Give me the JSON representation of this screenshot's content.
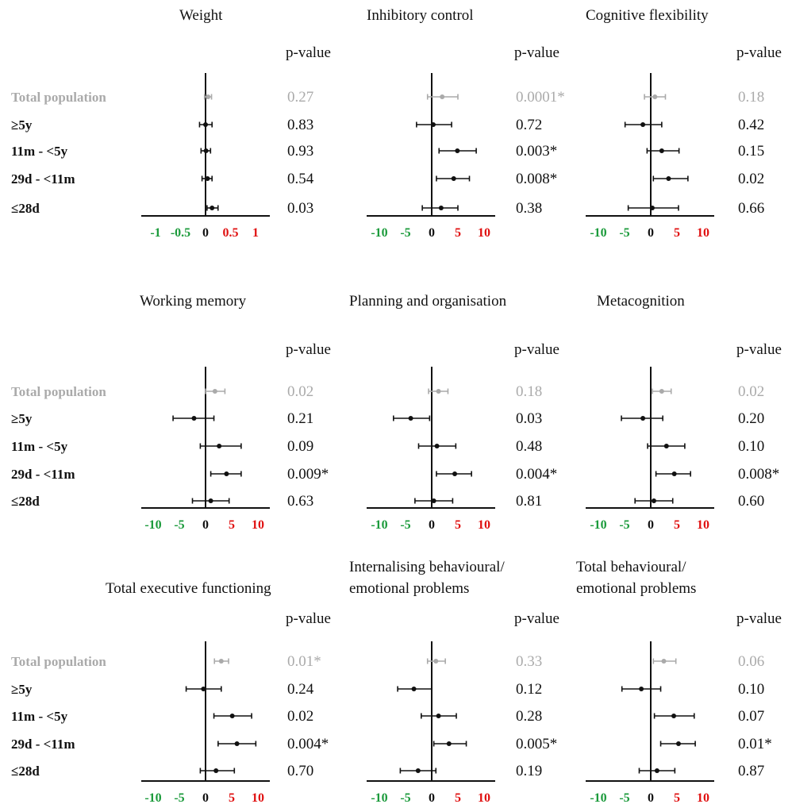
{
  "colors": {
    "total": "#aaaaaa",
    "subgroup": "#111111",
    "negative_tick": "#1a9a3a",
    "positive_tick": "#e01010",
    "zero_tick": "#111111"
  },
  "row_labels": [
    "Total population",
    "≥5y",
    "11m - <5y",
    "29d - <11m",
    "≤28d"
  ],
  "pvalue_header": "p-value",
  "chart_data": [
    {
      "type": "forest",
      "title": [
        "Weight"
      ],
      "xlim": [
        -1.3,
        1.3
      ],
      "ticks": [
        {
          "v": -1,
          "label": "-1"
        },
        {
          "v": -0.5,
          "label": "-0.5"
        },
        {
          "v": 0,
          "label": "0"
        },
        {
          "v": 0.5,
          "label": "0.5"
        },
        {
          "v": 1,
          "label": "1"
        }
      ],
      "rows": [
        {
          "label": "Total population",
          "est": 0.05,
          "lo": -0.02,
          "hi": 0.12,
          "p": "0.27"
        },
        {
          "label": "≥5y",
          "est": 0.0,
          "lo": -0.12,
          "hi": 0.13,
          "p": "0.83"
        },
        {
          "label": "11m - <5y",
          "est": 0.01,
          "lo": -0.09,
          "hi": 0.1,
          "p": "0.93"
        },
        {
          "label": "29d - <11m",
          "est": 0.04,
          "lo": -0.07,
          "hi": 0.13,
          "p": "0.54"
        },
        {
          "label": "≤28d",
          "est": 0.13,
          "lo": 0.03,
          "hi": 0.25,
          "p": "0.03"
        }
      ]
    },
    {
      "type": "forest",
      "title": [
        "Inhibitory control"
      ],
      "xlim": [
        -13,
        13
      ],
      "ticks": [
        {
          "v": -10,
          "label": "-10"
        },
        {
          "v": -5,
          "label": "-5"
        },
        {
          "v": 0,
          "label": "0"
        },
        {
          "v": 5,
          "label": "5"
        },
        {
          "v": 10,
          "label": "10"
        }
      ],
      "rows": [
        {
          "label": "Total population",
          "est": 2.0,
          "lo": -0.8,
          "hi": 5.0,
          "p": "0.0001*"
        },
        {
          "label": "≥5y",
          "est": 0.3,
          "lo": -2.9,
          "hi": 3.8,
          "p": "0.72"
        },
        {
          "label": "11m - <5y",
          "est": 4.9,
          "lo": 1.4,
          "hi": 8.5,
          "p": "0.003*"
        },
        {
          "label": "29d - <11m",
          "est": 4.2,
          "lo": 0.9,
          "hi": 7.2,
          "p": "0.008*"
        },
        {
          "label": "≤28d",
          "est": 1.8,
          "lo": -1.8,
          "hi": 5.0,
          "p": "0.38"
        }
      ]
    },
    {
      "type": "forest",
      "title": [
        "Cognitive flexibility"
      ],
      "xlim": [
        -13,
        13
      ],
      "ticks": [
        {
          "v": -10,
          "label": "-10"
        },
        {
          "v": -5,
          "label": "-5"
        },
        {
          "v": 0,
          "label": "0"
        },
        {
          "v": 5,
          "label": "5"
        },
        {
          "v": 10,
          "label": "10"
        }
      ],
      "rows": [
        {
          "label": "Total population",
          "est": 0.8,
          "lo": -1.2,
          "hi": 2.8,
          "p": "0.18"
        },
        {
          "label": "≥5y",
          "est": -1.5,
          "lo": -4.9,
          "hi": 2.1,
          "p": "0.42"
        },
        {
          "label": "11m - <5y",
          "est": 2.1,
          "lo": -0.7,
          "hi": 5.4,
          "p": "0.15"
        },
        {
          "label": "29d - <11m",
          "est": 3.4,
          "lo": 0.5,
          "hi": 7.1,
          "p": "0.02"
        },
        {
          "label": "≤28d",
          "est": 0.3,
          "lo": -4.3,
          "hi": 5.3,
          "p": "0.66"
        }
      ]
    },
    {
      "type": "forest",
      "title": [
        "Working memory"
      ],
      "xlim": [
        -13,
        13
      ],
      "ticks": [
        {
          "v": -10,
          "label": "-10"
        },
        {
          "v": -5,
          "label": "-5"
        },
        {
          "v": 0,
          "label": "0"
        },
        {
          "v": 5,
          "label": "5"
        },
        {
          "v": 10,
          "label": "10"
        }
      ],
      "rows": [
        {
          "label": "Total population",
          "est": 1.8,
          "lo": 0.0,
          "hi": 3.7,
          "p": "0.02"
        },
        {
          "label": "≥5y",
          "est": -2.2,
          "lo": -6.2,
          "hi": 1.6,
          "p": "0.21"
        },
        {
          "label": "11m - <5y",
          "est": 2.6,
          "lo": -1.0,
          "hi": 6.8,
          "p": "0.09"
        },
        {
          "label": "29d - <11m",
          "est": 4.0,
          "lo": 1.0,
          "hi": 6.8,
          "p": "0.009*"
        },
        {
          "label": "≤28d",
          "est": 1.0,
          "lo": -2.5,
          "hi": 4.5,
          "p": "0.63"
        }
      ]
    },
    {
      "type": "forest",
      "title": [
        "Planning and organisation"
      ],
      "xlim": [
        -13,
        13
      ],
      "ticks": [
        {
          "v": -10,
          "label": "-10"
        },
        {
          "v": -5,
          "label": "-5"
        },
        {
          "v": 0,
          "label": "0"
        },
        {
          "v": 5,
          "label": "5"
        },
        {
          "v": 10,
          "label": "10"
        }
      ],
      "rows": [
        {
          "label": "Total population",
          "est": 1.3,
          "lo": -0.6,
          "hi": 3.1,
          "p": "0.18"
        },
        {
          "label": "≥5y",
          "est": -4.0,
          "lo": -7.3,
          "hi": -0.4,
          "p": "0.03"
        },
        {
          "label": "11m - <5y",
          "est": 1.0,
          "lo": -2.5,
          "hi": 4.6,
          "p": "0.48"
        },
        {
          "label": "29d - <11m",
          "est": 4.4,
          "lo": 0.9,
          "hi": 7.6,
          "p": "0.004*"
        },
        {
          "label": "≤28d",
          "est": 0.4,
          "lo": -3.2,
          "hi": 4.0,
          "p": "0.81"
        }
      ]
    },
    {
      "type": "forest",
      "title": [
        "Metacognition"
      ],
      "xlim": [
        -13,
        13
      ],
      "ticks": [
        {
          "v": -10,
          "label": "-10"
        },
        {
          "v": -5,
          "label": "-5"
        },
        {
          "v": 0,
          "label": "0"
        },
        {
          "v": 5,
          "label": "5"
        },
        {
          "v": 10,
          "label": "10"
        }
      ],
      "rows": [
        {
          "label": "Total population",
          "est": 2.1,
          "lo": 0.3,
          "hi": 3.9,
          "p": "0.02"
        },
        {
          "label": "≥5y",
          "est": -1.5,
          "lo": -5.6,
          "hi": 2.3,
          "p": "0.20"
        },
        {
          "label": "11m - <5y",
          "est": 3.0,
          "lo": -0.6,
          "hi": 6.5,
          "p": "0.10"
        },
        {
          "label": "29d - <11m",
          "est": 4.5,
          "lo": 1.0,
          "hi": 7.6,
          "p": "0.008*"
        },
        {
          "label": "≤28d",
          "est": 0.6,
          "lo": -3.0,
          "hi": 4.2,
          "p": "0.60"
        }
      ]
    },
    {
      "type": "forest",
      "title": [
        "Total executive functioning"
      ],
      "xlim": [
        -13,
        13
      ],
      "ticks": [
        {
          "v": -10,
          "label": "-10"
        },
        {
          "v": -5,
          "label": "-5"
        },
        {
          "v": 0,
          "label": "0"
        },
        {
          "v": 5,
          "label": "5"
        },
        {
          "v": 10,
          "label": "10"
        }
      ],
      "rows": [
        {
          "label": "Total population",
          "est": 3.0,
          "lo": 1.7,
          "hi": 4.4,
          "p": "0.01*"
        },
        {
          "label": "≥5y",
          "est": -0.4,
          "lo": -3.7,
          "hi": 3.0,
          "p": "0.24"
        },
        {
          "label": "11m - <5y",
          "est": 5.1,
          "lo": 1.6,
          "hi": 8.8,
          "p": "0.02"
        },
        {
          "label": "29d - <11m",
          "est": 6.0,
          "lo": 2.4,
          "hi": 9.6,
          "p": "0.004*"
        },
        {
          "label": "≤28d",
          "est": 2.0,
          "lo": -1.0,
          "hi": 5.5,
          "p": "0.70"
        }
      ]
    },
    {
      "type": "forest",
      "title": [
        "Internalising behavioural/",
        "emotional problems"
      ],
      "xlim": [
        -13,
        13
      ],
      "ticks": [
        {
          "v": -10,
          "label": "-10"
        },
        {
          "v": -5,
          "label": "-5"
        },
        {
          "v": 0,
          "label": "0"
        },
        {
          "v": 5,
          "label": "5"
        },
        {
          "v": 10,
          "label": "10"
        }
      ],
      "rows": [
        {
          "label": "Total population",
          "est": 0.8,
          "lo": -0.8,
          "hi": 2.6,
          "p": "0.33"
        },
        {
          "label": "≥5y",
          "est": -3.4,
          "lo": -6.5,
          "hi": 0.0,
          "p": "0.12"
        },
        {
          "label": "11m - <5y",
          "est": 1.3,
          "lo": -2.0,
          "hi": 4.7,
          "p": "0.28"
        },
        {
          "label": "29d - <11m",
          "est": 3.3,
          "lo": 0.4,
          "hi": 6.6,
          "p": "0.005*"
        },
        {
          "label": "≤28d",
          "est": -2.6,
          "lo": -6.0,
          "hi": 0.8,
          "p": "0.19"
        }
      ]
    },
    {
      "type": "forest",
      "title": [
        "Total behavioural/",
        "emotional problems"
      ],
      "xlim": [
        -13,
        13
      ],
      "ticks": [
        {
          "v": -10,
          "label": "-10"
        },
        {
          "v": -5,
          "label": "-5"
        },
        {
          "v": 0,
          "label": "0"
        },
        {
          "v": 5,
          "label": "5"
        },
        {
          "v": 10,
          "label": "10"
        }
      ],
      "rows": [
        {
          "label": "Total population",
          "est": 2.5,
          "lo": 0.5,
          "hi": 4.8,
          "p": "0.06"
        },
        {
          "label": "≥5y",
          "est": -1.8,
          "lo": -5.5,
          "hi": 1.9,
          "p": "0.10"
        },
        {
          "label": "11m - <5y",
          "est": 4.4,
          "lo": 0.7,
          "hi": 8.3,
          "p": "0.07"
        },
        {
          "label": "29d - <11m",
          "est": 5.3,
          "lo": 1.9,
          "hi": 8.5,
          "p": "0.01*"
        },
        {
          "label": "≤28d",
          "est": 1.2,
          "lo": -2.2,
          "hi": 4.6,
          "p": "0.87"
        }
      ]
    }
  ]
}
